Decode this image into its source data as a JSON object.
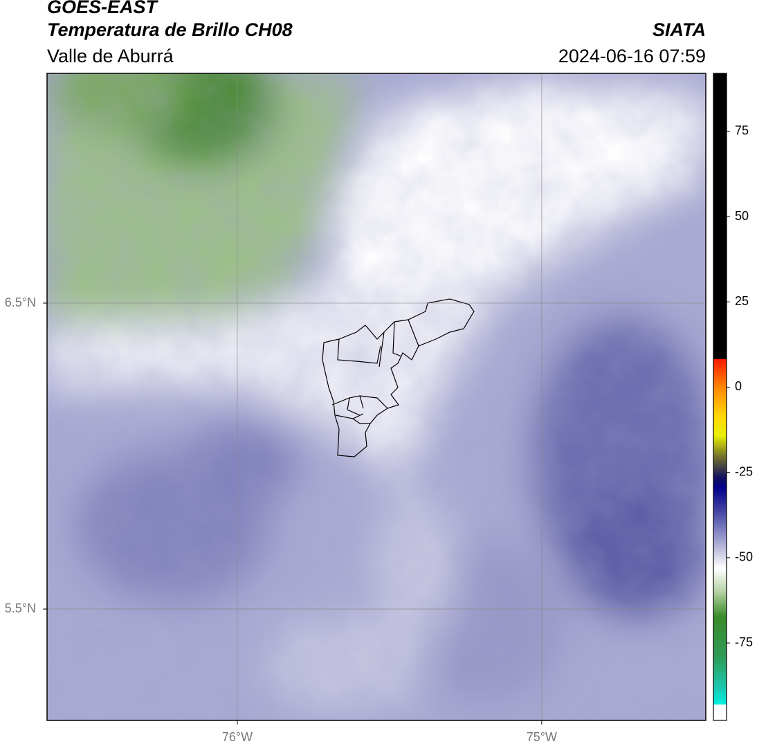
{
  "header": {
    "title": "GOES-EAST",
    "subtitle": "Temperatura de Brillo CH08",
    "region": "Valle de Aburrá",
    "source": "SIATA",
    "datetime": "2024-06-16 07:59"
  },
  "map": {
    "lonlim": [
      -76.625,
      -74.461
    ],
    "latlim": [
      5.136,
      7.251
    ],
    "lonticks": [
      {
        "value": -76,
        "label": "76°W"
      },
      {
        "value": -75,
        "label": "75°W"
      }
    ],
    "latticks": [
      {
        "value": 6.5,
        "label": "6.5°N"
      },
      {
        "value": 5.5,
        "label": "5.5°N"
      }
    ]
  },
  "colorbar": {
    "lim": [
      -97.7,
      92
    ],
    "ticks": [
      75,
      50,
      25,
      0,
      -25,
      -50,
      -75
    ]
  }
}
